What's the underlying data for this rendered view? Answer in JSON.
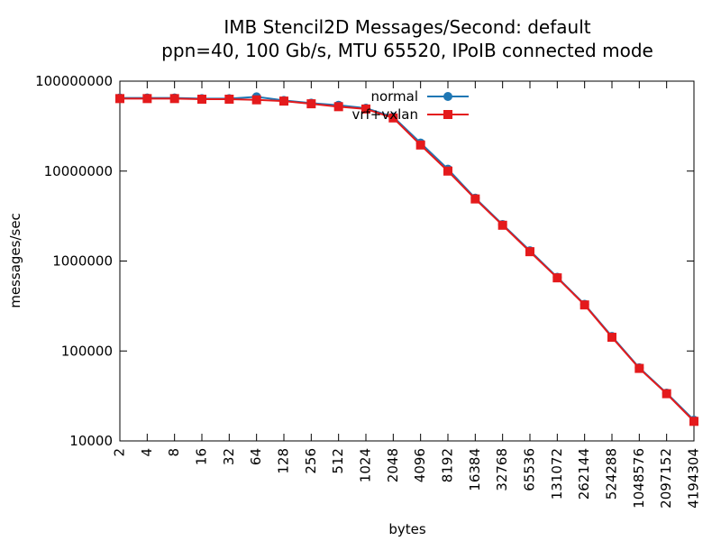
{
  "chart_data": {
    "type": "line",
    "title": "IMB Stencil2D Messages/Second: default",
    "subtitle": "ppn=40, 100 Gb/s, MTU 65520, IPoIB connected mode",
    "xlabel": "bytes",
    "ylabel": "messages/sec",
    "x_scale": "log2",
    "y_scale": "log10",
    "xlim": [
      2,
      4194304
    ],
    "ylim": [
      10000,
      100000000
    ],
    "x_ticks": [
      2,
      4,
      8,
      16,
      32,
      64,
      128,
      256,
      512,
      1024,
      2048,
      4096,
      8192,
      16384,
      32768,
      65536,
      131072,
      262144,
      524288,
      1048576,
      2097152,
      4194304
    ],
    "x_tick_labels": [
      "2",
      "4",
      "8",
      "16",
      "32",
      "64",
      "128",
      "256",
      "512",
      "1024",
      "2048",
      "4096",
      "8192",
      "16384",
      "32768",
      "65536",
      "131072",
      "262144",
      "524288",
      "1048576",
      "2097152",
      "4194304"
    ],
    "y_ticks": [
      10000,
      100000,
      1000000,
      10000000,
      100000000
    ],
    "y_tick_labels": [
      "10000",
      "100000",
      "1000000",
      "10000000",
      "100000000"
    ],
    "grid": false,
    "legend_position": "top-right",
    "x": [
      2,
      4,
      8,
      16,
      32,
      64,
      128,
      256,
      512,
      1024,
      2048,
      4096,
      8192,
      16384,
      32768,
      65536,
      131072,
      262144,
      524288,
      1048576,
      2097152,
      4194304
    ],
    "series": [
      {
        "name": "normal",
        "color": "#1f77b4",
        "marker": "circle",
        "values": [
          65000000,
          65000000,
          65000000,
          64000000,
          64000000,
          67000000,
          61000000,
          57000000,
          54000000,
          50000000,
          40000000,
          20500000,
          10500000,
          5000000,
          2550000,
          1300000,
          660000,
          330000,
          145000,
          65000,
          34000,
          17000
        ]
      },
      {
        "name": "vrf+vxlan",
        "color": "#e41a1c",
        "marker": "square",
        "values": [
          64000000,
          64000000,
          64000000,
          63000000,
          63000000,
          62000000,
          60000000,
          56000000,
          52000000,
          49000000,
          39000000,
          19500000,
          10000000,
          4900000,
          2500000,
          1270000,
          650000,
          325000,
          142000,
          64000,
          33500,
          16500
        ]
      }
    ]
  }
}
